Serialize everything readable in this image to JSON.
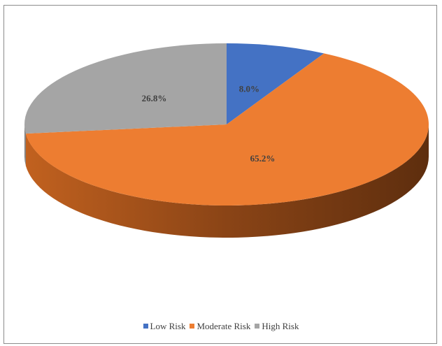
{
  "chart_data": {
    "type": "pie",
    "title": "",
    "categories": [
      "Low Risk",
      "Moderate Risk",
      "High Risk"
    ],
    "values": [
      8.0,
      65.2,
      26.8
    ],
    "labels": [
      "8.0%",
      "65.2%",
      "26.8%"
    ],
    "colors": [
      "#4472c4",
      "#ed7d31",
      "#a5a5a5"
    ],
    "side_colors": [
      "#2f528f",
      "#b75c1f",
      "#7b7b7b"
    ],
    "legend_position": "bottom",
    "style": "3d"
  }
}
